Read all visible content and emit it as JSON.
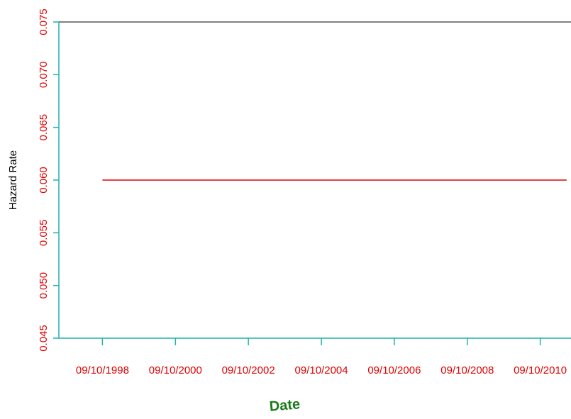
{
  "chart_data": {
    "type": "line",
    "xlabel": "Date",
    "ylabel": "Hazard Rate",
    "ylim": [
      0.045,
      0.075
    ],
    "yticks": [
      "0.045",
      "0.050",
      "0.055",
      "0.060",
      "0.065",
      "0.070",
      "0.075"
    ],
    "xlim": [
      "1997-07-01",
      "2011-07-15"
    ],
    "xticks": [
      "09/10/1998",
      "09/10/2000",
      "09/10/2002",
      "09/10/2004",
      "09/10/2006",
      "09/10/2008",
      "09/10/2010"
    ],
    "series": [
      {
        "x": [
          "1998-09-10",
          "2011-06-01"
        ],
        "y": [
          0.06,
          0.06
        ]
      }
    ],
    "grid": false,
    "colors": {
      "line": "#e00000",
      "axis": "#20b2aa",
      "tick_label": "#e00000",
      "xlabel": "#1a7a1a",
      "ylabel": "#000000",
      "top_border": "#000000"
    }
  }
}
